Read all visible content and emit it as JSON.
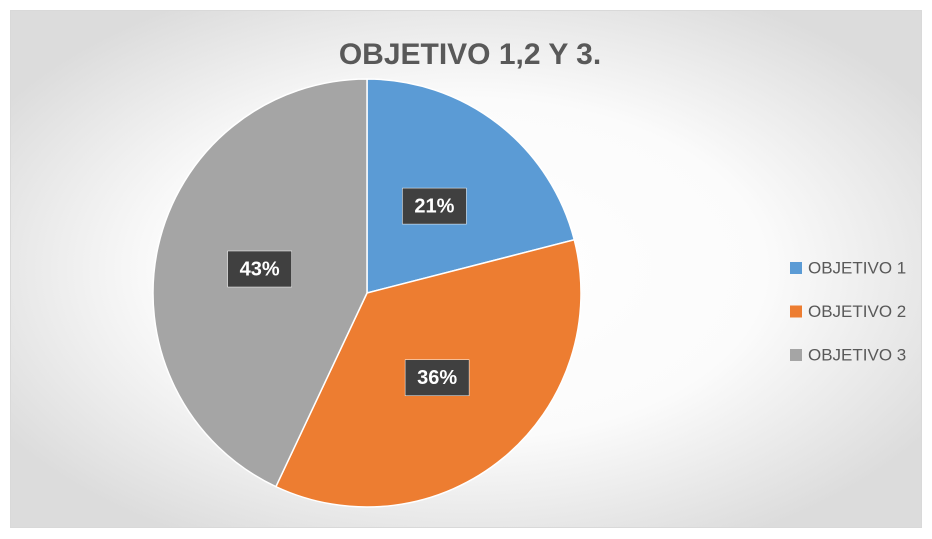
{
  "chart_data": {
    "type": "pie",
    "title": "OBJETIVO 1,2 Y 3.",
    "categories": [
      "OBJETIVO 1",
      "OBJETIVO 2",
      "OBJETIVO 3"
    ],
    "values": [
      21,
      36,
      43
    ],
    "value_labels": [
      "21%",
      "36%",
      "43%"
    ],
    "colors": [
      "#5b9bd5",
      "#ed7d31",
      "#a5a5a5"
    ],
    "legend": "right"
  }
}
